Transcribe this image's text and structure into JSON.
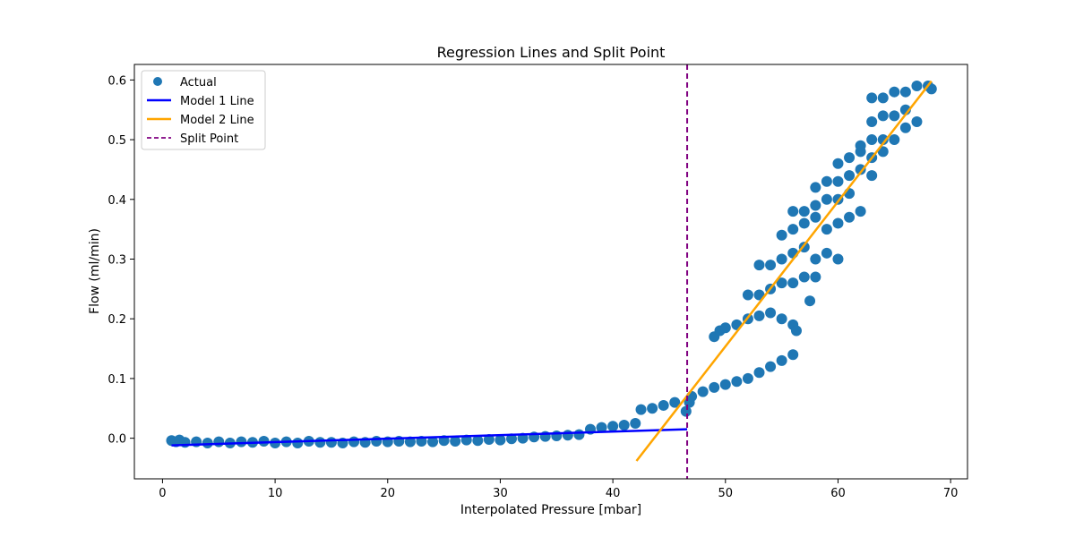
{
  "chart_data": {
    "type": "scatter",
    "title": "Regression Lines and Split Point",
    "xlabel": "Interpolated Pressure [mbar]",
    "ylabel": "Flow (ml/min)",
    "xlim": [
      -2.5,
      71.5
    ],
    "ylim": [
      -0.068,
      0.626
    ],
    "x_ticks": [
      0,
      10,
      20,
      30,
      40,
      50,
      60,
      70
    ],
    "y_ticks": [
      0.0,
      0.1,
      0.2,
      0.3,
      0.4,
      0.5,
      0.6
    ],
    "grid": false,
    "legend_position": "top-left",
    "colors": {
      "actual": "#1f77b4",
      "model1": "#0000ff",
      "model2": "#ffa500",
      "split": "#800080"
    },
    "legend": [
      {
        "label": "Actual",
        "kind": "marker",
        "color": "#1f77b4"
      },
      {
        "label": "Model 1 Line",
        "kind": "line",
        "color": "#0000ff"
      },
      {
        "label": "Model 2 Line",
        "kind": "line",
        "color": "#ffa500"
      },
      {
        "label": "Split Point",
        "kind": "dashed",
        "color": "#800080"
      }
    ],
    "series": [
      {
        "name": "Actual",
        "type": "scatter",
        "points": [
          [
            0.8,
            -0.004
          ],
          [
            1.2,
            -0.006
          ],
          [
            1.5,
            -0.003
          ],
          [
            2,
            -0.007
          ],
          [
            3,
            -0.006
          ],
          [
            4,
            -0.008
          ],
          [
            5,
            -0.006
          ],
          [
            6,
            -0.008
          ],
          [
            7,
            -0.006
          ],
          [
            8,
            -0.007
          ],
          [
            9,
            -0.005
          ],
          [
            10,
            -0.008
          ],
          [
            11,
            -0.006
          ],
          [
            12,
            -0.008
          ],
          [
            13,
            -0.005
          ],
          [
            14,
            -0.007
          ],
          [
            15,
            -0.007
          ],
          [
            16,
            -0.008
          ],
          [
            17,
            -0.006
          ],
          [
            18,
            -0.007
          ],
          [
            19,
            -0.005
          ],
          [
            20,
            -0.006
          ],
          [
            21,
            -0.005
          ],
          [
            22,
            -0.006
          ],
          [
            23,
            -0.005
          ],
          [
            24,
            -0.006
          ],
          [
            25,
            -0.004
          ],
          [
            26,
            -0.005
          ],
          [
            27,
            -0.003
          ],
          [
            28,
            -0.004
          ],
          [
            29,
            -0.002
          ],
          [
            30,
            -0.003
          ],
          [
            31,
            -0.001
          ],
          [
            32,
            0.0
          ],
          [
            33,
            0.002
          ],
          [
            34,
            0.003
          ],
          [
            35,
            0.004
          ],
          [
            36,
            0.005
          ],
          [
            37,
            0.006
          ],
          [
            38,
            0.015
          ],
          [
            39,
            0.018
          ],
          [
            40,
            0.02
          ],
          [
            41,
            0.022
          ],
          [
            42,
            0.025
          ],
          [
            42.5,
            0.048
          ],
          [
            43.5,
            0.05
          ],
          [
            44.5,
            0.055
          ],
          [
            45.5,
            0.06
          ],
          [
            46.5,
            0.045
          ],
          [
            46.8,
            0.06
          ],
          [
            47,
            0.07
          ],
          [
            48,
            0.078
          ],
          [
            49,
            0.085
          ],
          [
            50,
            0.09
          ],
          [
            51,
            0.095
          ],
          [
            52,
            0.1
          ],
          [
            53,
            0.11
          ],
          [
            54,
            0.12
          ],
          [
            55,
            0.13
          ],
          [
            56,
            0.14
          ],
          [
            49,
            0.17
          ],
          [
            49.5,
            0.18
          ],
          [
            50,
            0.185
          ],
          [
            51,
            0.19
          ],
          [
            52,
            0.2
          ],
          [
            53,
            0.205
          ],
          [
            54,
            0.21
          ],
          [
            55,
            0.2
          ],
          [
            56,
            0.19
          ],
          [
            56.3,
            0.18
          ],
          [
            52,
            0.24
          ],
          [
            53,
            0.24
          ],
          [
            54,
            0.25
          ],
          [
            55,
            0.26
          ],
          [
            56,
            0.26
          ],
          [
            57,
            0.27
          ],
          [
            58,
            0.27
          ],
          [
            57.5,
            0.23
          ],
          [
            53,
            0.29
          ],
          [
            54,
            0.29
          ],
          [
            55,
            0.3
          ],
          [
            56,
            0.31
          ],
          [
            57,
            0.32
          ],
          [
            58,
            0.3
          ],
          [
            59,
            0.31
          ],
          [
            60,
            0.3
          ],
          [
            55,
            0.34
          ],
          [
            56,
            0.35
          ],
          [
            57,
            0.36
          ],
          [
            58,
            0.37
          ],
          [
            59,
            0.35
          ],
          [
            60,
            0.36
          ],
          [
            61,
            0.37
          ],
          [
            56,
            0.38
          ],
          [
            57,
            0.38
          ],
          [
            58,
            0.39
          ],
          [
            59,
            0.4
          ],
          [
            60,
            0.4
          ],
          [
            61,
            0.41
          ],
          [
            62,
            0.38
          ],
          [
            58,
            0.42
          ],
          [
            59,
            0.43
          ],
          [
            60,
            0.43
          ],
          [
            61,
            0.44
          ],
          [
            62,
            0.45
          ],
          [
            63,
            0.44
          ],
          [
            60,
            0.46
          ],
          [
            61,
            0.47
          ],
          [
            62,
            0.48
          ],
          [
            63,
            0.47
          ],
          [
            64,
            0.48
          ],
          [
            62,
            0.49
          ],
          [
            63,
            0.5
          ],
          [
            64,
            0.5
          ],
          [
            65,
            0.5
          ],
          [
            66,
            0.52
          ],
          [
            63,
            0.53
          ],
          [
            64,
            0.54
          ],
          [
            65,
            0.54
          ],
          [
            66,
            0.55
          ],
          [
            67,
            0.53
          ],
          [
            63,
            0.57
          ],
          [
            64,
            0.57
          ],
          [
            65,
            0.58
          ],
          [
            66,
            0.58
          ],
          [
            67,
            0.59
          ],
          [
            68,
            0.59
          ],
          [
            68.3,
            0.585
          ]
        ]
      },
      {
        "name": "Model 1 Line",
        "type": "line",
        "points": [
          [
            0.8,
            -0.012
          ],
          [
            46.6,
            0.015
          ]
        ]
      },
      {
        "name": "Model 2 Line",
        "type": "line",
        "points": [
          [
            42.1,
            -0.038
          ],
          [
            68.3,
            0.598
          ]
        ]
      }
    ],
    "split_point": {
      "name": "Split Point",
      "x": 46.6
    }
  }
}
